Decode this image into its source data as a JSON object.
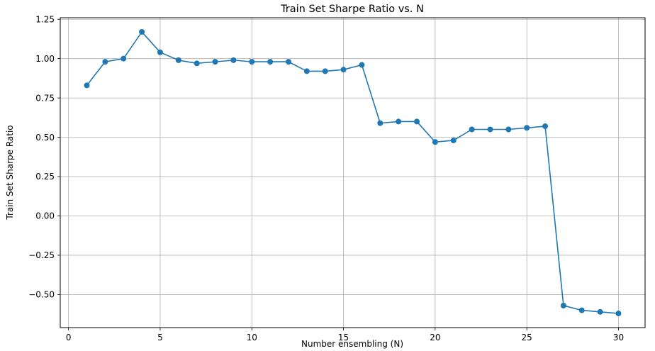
{
  "chart_data": {
    "type": "line",
    "title": "Train Set Sharpe Ratio vs. N",
    "xlabel": "Number ensembling (N)",
    "ylabel": "Train Set Sharpe Ratio",
    "x": [
      1,
      2,
      3,
      4,
      5,
      6,
      7,
      8,
      9,
      10,
      11,
      12,
      13,
      14,
      15,
      16,
      17,
      18,
      19,
      20,
      21,
      22,
      23,
      24,
      25,
      26,
      27,
      28,
      29,
      30
    ],
    "y": [
      0.83,
      0.98,
      1.0,
      1.17,
      1.04,
      0.99,
      0.97,
      0.98,
      0.99,
      0.98,
      0.98,
      0.98,
      0.92,
      0.92,
      0.93,
      0.96,
      0.59,
      0.6,
      0.6,
      0.47,
      0.48,
      0.55,
      0.55,
      0.55,
      0.56,
      0.57,
      -0.57,
      -0.6,
      -0.61,
      -0.62
    ],
    "xlim": [
      -0.45,
      31.45
    ],
    "ylim": [
      -0.71,
      1.26
    ],
    "xticks": [
      0,
      5,
      10,
      15,
      20,
      25,
      30
    ],
    "xtick_labels": [
      "0",
      "5",
      "10",
      "15",
      "20",
      "25",
      "30"
    ],
    "yticks": [
      -0.5,
      -0.25,
      0.0,
      0.25,
      0.5,
      0.75,
      1.0,
      1.25
    ],
    "ytick_labels": [
      "−0.50",
      "−0.25",
      "0.00",
      "0.25",
      "0.50",
      "0.75",
      "1.00",
      "1.25"
    ],
    "grid": true,
    "legend": "none",
    "marker": "circle",
    "line_color": "#1f77b4",
    "marker_color": "#1f77b4",
    "grid_color": "#b0b0b0",
    "spine_color": "#000000",
    "background": "#ffffff"
  }
}
